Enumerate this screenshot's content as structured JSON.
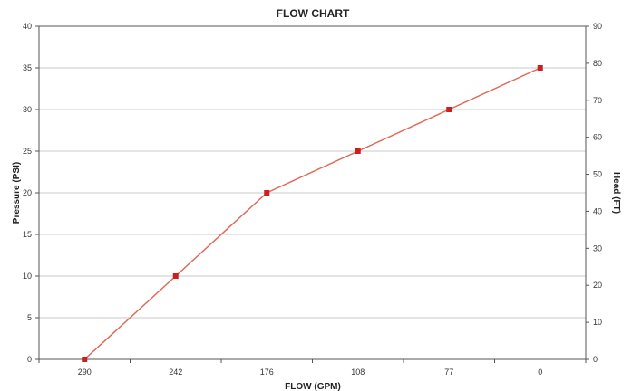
{
  "chart_data": {
    "type": "line",
    "title": "FLOW CHART",
    "xlabel": "FLOW (GPM)",
    "ylabel": "Pressure (PSI)",
    "y2label": "Head (FT)",
    "categories": [
      "290",
      "242",
      "176",
      "108",
      "77",
      "0"
    ],
    "series": [
      {
        "values": [
          0,
          10,
          20,
          25,
          30,
          35
        ]
      }
    ],
    "ylim": [
      0,
      40
    ],
    "yticks": [
      0,
      5,
      10,
      15,
      20,
      25,
      30,
      35,
      40
    ],
    "y2lim": [
      0,
      90
    ],
    "y2ticks": [
      0,
      10,
      20,
      30,
      40,
      50,
      60,
      70,
      80,
      90
    ],
    "grid": true,
    "colors": {
      "line": "#e06a55",
      "marker": "#cc1f1f",
      "grid": "#c8c8c8"
    }
  }
}
